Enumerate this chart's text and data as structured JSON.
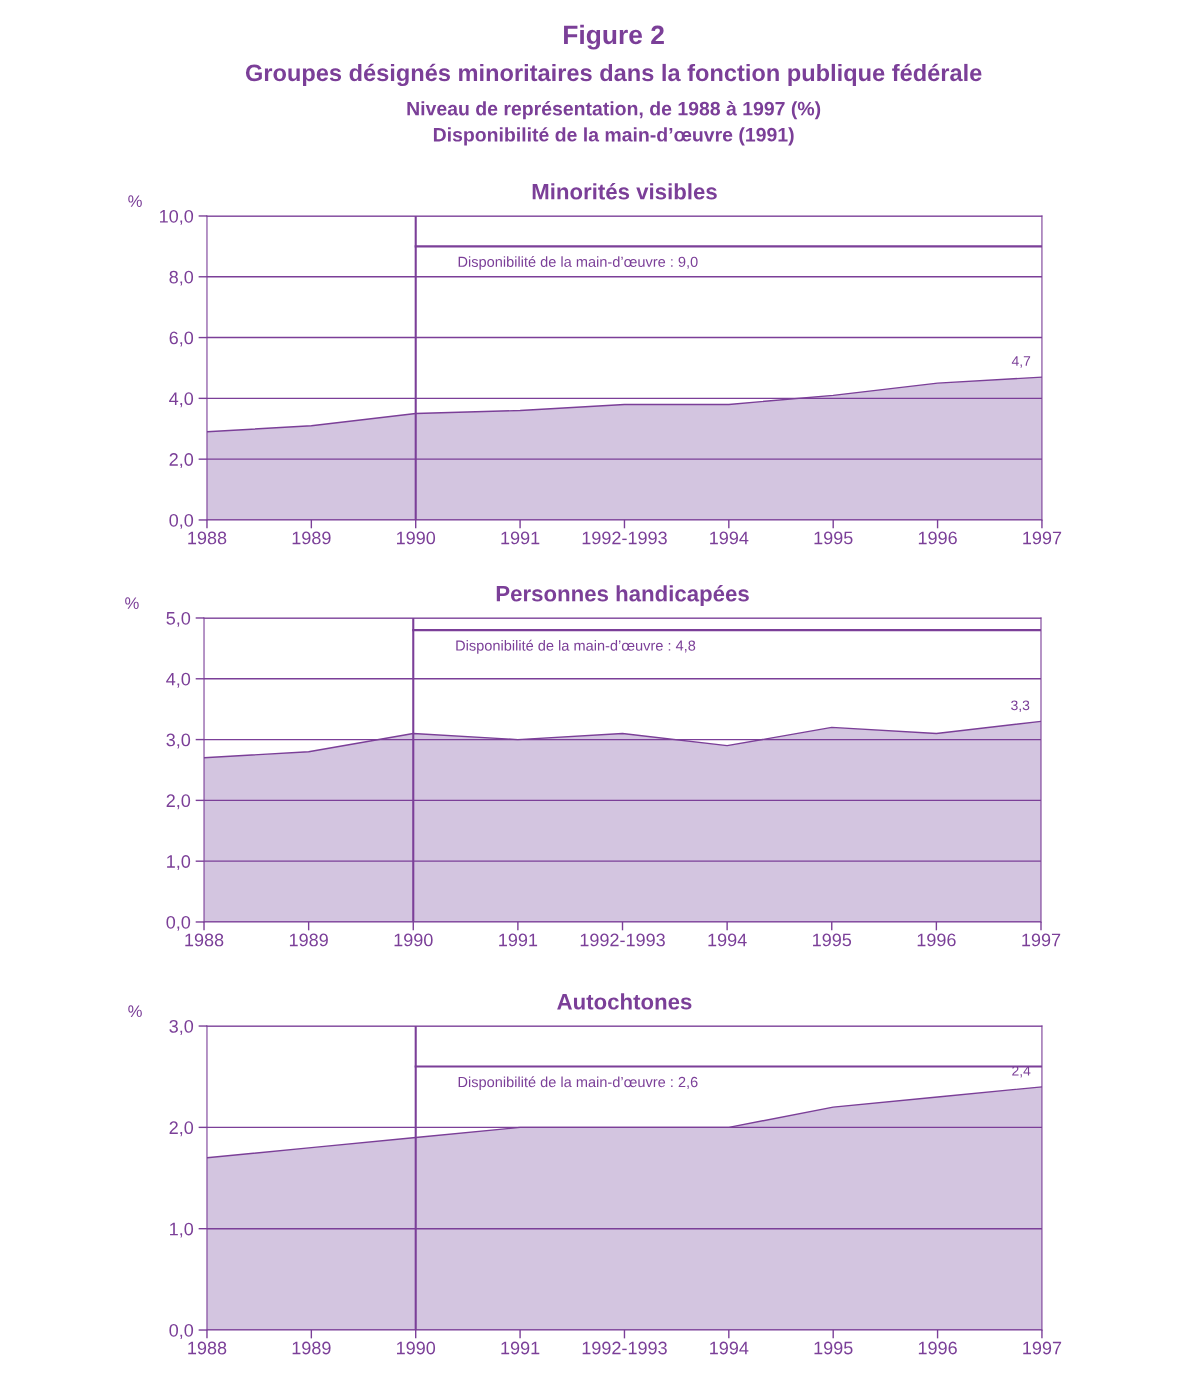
{
  "chart_data": [
    {
      "type": "other",
      "title": "Figure 2",
      "subtitle": "Groupes désignés minoritaires dans la fonction publique fédérale",
      "annotations": [
        "Niveau de représentation, de 1988 à 1997 (%)",
        "Disponibilité de la main-d’œuvre (1991)"
      ]
    },
    {
      "type": "area",
      "title": "Minorités visibles",
      "ylabel": "%",
      "categories": [
        "1988",
        "1989",
        "1990",
        "1991",
        "1992-1993",
        "1994",
        "1995",
        "1996",
        "1997"
      ],
      "series": [
        {
          "color": "#d3c5e0",
          "values": [
            2.9,
            3.1,
            3.5,
            3.6,
            3.8,
            3.8,
            4.1,
            4.5,
            4.7
          ],
          "value_labels": [
            null,
            null,
            null,
            null,
            null,
            null,
            null,
            null,
            "4,7"
          ]
        }
      ],
      "ylim": [
        0,
        10
      ],
      "yticks": [
        {
          "value": 0,
          "label": "0,0"
        },
        {
          "value": 2,
          "label": "2,0"
        },
        {
          "value": 4,
          "label": "4,0"
        },
        {
          "value": 6,
          "label": "6,0"
        },
        {
          "value": 8,
          "label": "8,0"
        },
        {
          "value": 10,
          "label": "10,0"
        }
      ],
      "grid": "y",
      "ref_lines": [
        {
          "axis": "x",
          "value": "1990",
          "color": "#7b3f98"
        },
        {
          "axis": "y",
          "value": 9.0,
          "label": "Disponibilité de la main-d’œuvre : 9,0",
          "color": "#7b3f98"
        }
      ]
    },
    {
      "type": "area",
      "title": "Personnes handicapées",
      "ylabel": "%",
      "categories": [
        "1988",
        "1989",
        "1990",
        "1991",
        "1992-1993",
        "1994",
        "1995",
        "1996",
        "1997"
      ],
      "series": [
        {
          "color": "#d3c5e0",
          "values": [
            2.7,
            2.8,
            3.1,
            3.0,
            3.1,
            2.9,
            3.2,
            3.1,
            3.3
          ],
          "value_labels": [
            null,
            null,
            null,
            null,
            null,
            null,
            null,
            null,
            "3,3"
          ]
        }
      ],
      "ylim": [
        0,
        5
      ],
      "yticks": [
        {
          "value": 0,
          "label": "0,0"
        },
        {
          "value": 1,
          "label": "1,0"
        },
        {
          "value": 2,
          "label": "2,0"
        },
        {
          "value": 3,
          "label": "3,0"
        },
        {
          "value": 4,
          "label": "4,0"
        },
        {
          "value": 5,
          "label": "5,0"
        }
      ],
      "grid": "y",
      "ref_lines": [
        {
          "axis": "x",
          "value": "1990",
          "color": "#7b3f98"
        },
        {
          "axis": "y",
          "value": 4.8,
          "label": "Disponibilité de la main-d’œuvre : 4,8",
          "color": "#7b3f98"
        }
      ]
    },
    {
      "type": "area",
      "title": "Autochtones",
      "ylabel": "%",
      "categories": [
        "1988",
        "1989",
        "1990",
        "1991",
        "1992-1993",
        "1994",
        "1995",
        "1996",
        "1997"
      ],
      "series": [
        {
          "color": "#d3c5e0",
          "values": [
            1.7,
            1.8,
            1.9,
            2.0,
            2.0,
            2.0,
            2.2,
            2.3,
            2.4
          ],
          "value_labels": [
            null,
            null,
            null,
            null,
            null,
            null,
            null,
            null,
            "2,4"
          ]
        }
      ],
      "ylim": [
        0,
        3
      ],
      "yticks": [
        {
          "value": 0,
          "label": "0,0"
        },
        {
          "value": 1,
          "label": "1,0"
        },
        {
          "value": 2,
          "label": "2,0"
        },
        {
          "value": 3,
          "label": "3,0"
        }
      ],
      "grid": "y",
      "ref_lines": [
        {
          "axis": "x",
          "value": "1990",
          "color": "#7b3f98"
        },
        {
          "axis": "y",
          "value": 2.6,
          "label": "Disponibilité de la main-d’œuvre : 2,6",
          "color": "#7b3f98"
        }
      ]
    }
  ]
}
